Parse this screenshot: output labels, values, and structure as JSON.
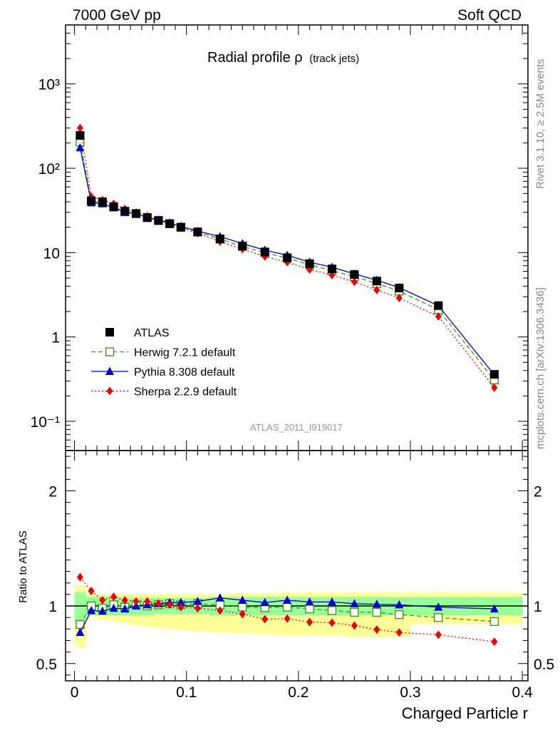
{
  "header": {
    "left": "7000 GeV pp",
    "right": "Soft QCD"
  },
  "side_labels": {
    "rivet": "Rivet 3.1.10, ≥ 2.5M events",
    "mcplots": "mcplots.cern.ch [arXiv:1306.3436]"
  },
  "chart_data": [
    {
      "type": "scatter",
      "title": "Radial profile ρ",
      "title_suffix": "(track jets)",
      "analysis_id": "ATLAS_2011_I919017",
      "yscale": "log",
      "xlim": [
        -0.008,
        0.405
      ],
      "ylim": [
        0.045,
        5000
      ],
      "ytick_labels": [
        "10⁻¹",
        "1",
        "10",
        "10²",
        "10³"
      ],
      "legend_position": "lower-left",
      "colors": {
        "ATLAS": "#000000",
        "Herwig": "#3a9a1a",
        "Pythia": "#0000cc",
        "Sherpa": "#ee0000"
      },
      "x": [
        0.005,
        0.015,
        0.025,
        0.035,
        0.045,
        0.055,
        0.065,
        0.075,
        0.085,
        0.095,
        0.11,
        0.13,
        0.15,
        0.17,
        0.19,
        0.21,
        0.23,
        0.25,
        0.27,
        0.29,
        0.325,
        0.375
      ],
      "series": [
        {
          "name": "ATLAS",
          "values": [
            245,
            41,
            40,
            35,
            31,
            29,
            26,
            24,
            22,
            20,
            17.5,
            14.5,
            12,
            10.2,
            8.7,
            7.4,
            6.4,
            5.5,
            4.6,
            3.8,
            2.35,
            0.36
          ]
        },
        {
          "name": "Herwig 7.2.1 default",
          "values": [
            205,
            41,
            39,
            35,
            30.5,
            29,
            26,
            24,
            22,
            20,
            17.6,
            14.5,
            11.8,
            10,
            8.6,
            7.2,
            6.1,
            5.2,
            4.3,
            3.5,
            2.1,
            0.31
          ]
        },
        {
          "name": "Pythia 8.308 default",
          "values": [
            175,
            39,
            38,
            34,
            30,
            29,
            26,
            24.5,
            22.5,
            20.5,
            18,
            15.5,
            12.8,
            10.7,
            9.3,
            7.7,
            6.7,
            5.6,
            4.7,
            3.85,
            2.35,
            0.355
          ]
        },
        {
          "name": "Sherpa 2.2.9 default",
          "values": [
            300,
            46,
            42,
            38,
            33,
            30,
            27,
            24.5,
            22,
            19.5,
            17,
            13.5,
            11,
            9,
            7.7,
            6.3,
            5.4,
            4.5,
            3.6,
            2.9,
            1.75,
            0.25
          ]
        }
      ]
    },
    {
      "type": "scatter",
      "ylabel": "Ratio to ATLAS",
      "xlabel": "Charged Particle r",
      "xlim": [
        -0.008,
        0.405
      ],
      "ylim": [
        0.35,
        2.35
      ],
      "xtick_labels": [
        "0",
        "0.1",
        "0.2",
        "0.3",
        "0.4"
      ],
      "ytick_labels": [
        "0.5",
        "1",
        "2"
      ],
      "x": [
        0.005,
        0.015,
        0.025,
        0.035,
        0.045,
        0.055,
        0.065,
        0.075,
        0.085,
        0.095,
        0.11,
        0.13,
        0.15,
        0.17,
        0.19,
        0.21,
        0.23,
        0.25,
        0.27,
        0.29,
        0.325,
        0.375
      ],
      "bands": {
        "edges": [
          0,
          0.01,
          0.02,
          0.03,
          0.04,
          0.05,
          0.06,
          0.07,
          0.08,
          0.09,
          0.1,
          0.12,
          0.14,
          0.16,
          0.18,
          0.2,
          0.22,
          0.24,
          0.26,
          0.28,
          0.3,
          0.35,
          0.4
        ],
        "stat_lo": [
          0.88,
          0.92,
          0.92,
          0.92,
          0.92,
          0.92,
          0.92,
          0.93,
          0.93,
          0.93,
          0.93,
          0.92,
          0.92,
          0.92,
          0.92,
          0.92,
          0.92,
          0.92,
          0.92,
          0.92,
          0.92,
          0.92
        ],
        "stat_hi": [
          1.12,
          1.08,
          1.08,
          1.08,
          1.07,
          1.07,
          1.07,
          1.07,
          1.07,
          1.07,
          1.07,
          1.08,
          1.08,
          1.08,
          1.08,
          1.08,
          1.08,
          1.08,
          1.08,
          1.08,
          1.08,
          1.08
        ],
        "tot_lo": [
          0.64,
          0.91,
          0.88,
          0.87,
          0.85,
          0.83,
          0.82,
          0.81,
          0.8,
          0.79,
          0.78,
          0.77,
          0.76,
          0.75,
          0.74,
          0.74,
          0.74,
          0.73,
          0.73,
          0.73,
          0.84,
          0.84
        ],
        "tot_hi": [
          1.18,
          1.1,
          1.1,
          1.1,
          1.1,
          1.1,
          1.1,
          1.1,
          1.1,
          1.1,
          1.1,
          1.1,
          1.11,
          1.11,
          1.12,
          1.12,
          1.12,
          1.12,
          1.12,
          1.12,
          1.12,
          1.12
        ]
      },
      "series": [
        {
          "name": "Herwig 7.2.1 default",
          "values": [
            0.84,
            1.0,
            0.98,
            1.01,
            0.99,
            1.01,
            1.0,
            1.01,
            1.02,
            1.01,
            1.02,
            1.01,
            0.99,
            0.985,
            0.99,
            0.975,
            0.96,
            0.945,
            0.945,
            0.925,
            0.9,
            0.865
          ]
        },
        {
          "name": "Pythia 8.308 default",
          "values": [
            0.77,
            0.96,
            0.955,
            0.98,
            0.975,
            1.0,
            1.01,
            1.02,
            1.03,
            1.03,
            1.04,
            1.07,
            1.05,
            1.03,
            1.05,
            1.035,
            1.035,
            1.02,
            1.015,
            1.01,
            0.99,
            0.975
          ]
        },
        {
          "name": "Sherpa 2.2.9 default",
          "values": [
            1.25,
            1.13,
            1.05,
            1.08,
            1.05,
            1.04,
            1.04,
            1.02,
            1.01,
            0.99,
            0.98,
            0.96,
            0.93,
            0.885,
            0.89,
            0.86,
            0.855,
            0.83,
            0.795,
            0.77,
            0.75,
            0.69
          ]
        }
      ]
    }
  ]
}
